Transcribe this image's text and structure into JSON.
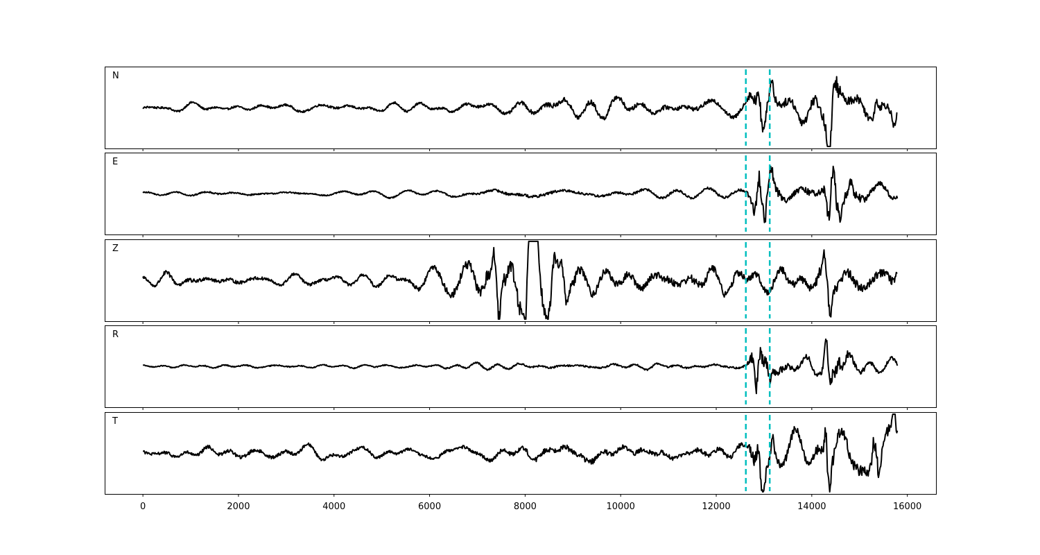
{
  "chart_data": {
    "type": "line",
    "layout": "stacked-subplots",
    "shared_x_axis": true,
    "xlim": [
      -800,
      16600
    ],
    "x_ticks": [
      0,
      2000,
      4000,
      6000,
      8000,
      10000,
      12000,
      14000,
      16000
    ],
    "x_tick_labels": [
      "0",
      "2000",
      "4000",
      "6000",
      "8000",
      "10000",
      "12000",
      "14000",
      "16000"
    ],
    "ylim": [
      -1,
      1
    ],
    "y_ticks_shown": false,
    "grid": false,
    "line_color": "#000000",
    "marker_color": "#00bfbf",
    "marker_style": "dashed",
    "vertical_markers_x": [
      12620,
      13120
    ],
    "trace_x_range": [
      0,
      15800
    ],
    "panels": [
      {
        "label": "N",
        "envelope": [
          [
            0,
            0.08
          ],
          [
            2000,
            0.08
          ],
          [
            4000,
            0.09
          ],
          [
            6000,
            0.09
          ],
          [
            7800,
            0.14
          ],
          [
            9000,
            0.22
          ],
          [
            10500,
            0.18
          ],
          [
            12000,
            0.17
          ],
          [
            12620,
            0.18
          ],
          [
            12850,
            0.72
          ],
          [
            12950,
            0.55
          ],
          [
            13150,
            0.35
          ],
          [
            13600,
            0.33
          ],
          [
            14000,
            0.4
          ],
          [
            14300,
            0.5
          ],
          [
            14450,
            0.88
          ],
          [
            14700,
            0.38
          ],
          [
            15200,
            0.32
          ],
          [
            15800,
            0.3
          ]
        ],
        "spikes": [
          [
            12880,
            0.78
          ],
          [
            13000,
            -0.42
          ],
          [
            13160,
            0.52
          ],
          [
            14360,
            -0.92
          ],
          [
            14480,
            0.55
          ],
          [
            15350,
            0.35
          ],
          [
            15720,
            -0.35
          ]
        ]
      },
      {
        "label": "E",
        "envelope": [
          [
            0,
            0.05
          ],
          [
            2000,
            0.06
          ],
          [
            4000,
            0.05
          ],
          [
            6000,
            0.06
          ],
          [
            7000,
            0.08
          ],
          [
            8000,
            0.12
          ],
          [
            9500,
            0.1
          ],
          [
            11000,
            0.1
          ],
          [
            12000,
            0.1
          ],
          [
            12620,
            0.1
          ],
          [
            12880,
            0.72
          ],
          [
            13000,
            0.6
          ],
          [
            13150,
            0.45
          ],
          [
            13600,
            0.25
          ],
          [
            14200,
            0.3
          ],
          [
            14450,
            0.8
          ],
          [
            14800,
            0.45
          ],
          [
            15200,
            0.25
          ],
          [
            15800,
            0.2
          ]
        ],
        "spikes": [
          [
            12890,
            0.9
          ],
          [
            13020,
            -0.72
          ],
          [
            13150,
            0.42
          ],
          [
            14350,
            -0.68
          ],
          [
            14450,
            0.75
          ],
          [
            14600,
            -0.4
          ],
          [
            14820,
            0.35
          ]
        ]
      },
      {
        "label": "Z",
        "envelope": [
          [
            0,
            0.1
          ],
          [
            500,
            0.18
          ],
          [
            1500,
            0.15
          ],
          [
            3000,
            0.12
          ],
          [
            4500,
            0.12
          ],
          [
            5500,
            0.15
          ],
          [
            6300,
            0.25
          ],
          [
            7000,
            0.5
          ],
          [
            7500,
            0.72
          ],
          [
            8100,
            0.78
          ],
          [
            8700,
            0.5
          ],
          [
            9500,
            0.3
          ],
          [
            10500,
            0.3
          ],
          [
            11500,
            0.32
          ],
          [
            12600,
            0.3
          ],
          [
            13100,
            0.3
          ],
          [
            13600,
            0.3
          ],
          [
            14300,
            0.5
          ],
          [
            14600,
            0.4
          ],
          [
            15800,
            0.35
          ]
        ],
        "spikes": [
          [
            7350,
            0.65
          ],
          [
            7450,
            -0.72
          ],
          [
            8070,
            0.72
          ],
          [
            8020,
            -0.82
          ],
          [
            8250,
            0.62
          ],
          [
            8600,
            0.62
          ],
          [
            8860,
            -0.62
          ],
          [
            14380,
            -0.85
          ],
          [
            14260,
            0.42
          ],
          [
            15780,
            0.3
          ]
        ]
      },
      {
        "label": "R",
        "envelope": [
          [
            0,
            0.03
          ],
          [
            2000,
            0.05
          ],
          [
            4000,
            0.04
          ],
          [
            6000,
            0.05
          ],
          [
            7000,
            0.07
          ],
          [
            8000,
            0.07
          ],
          [
            10000,
            0.07
          ],
          [
            12000,
            0.07
          ],
          [
            12620,
            0.08
          ],
          [
            12850,
            0.82
          ],
          [
            13000,
            0.55
          ],
          [
            13150,
            0.4
          ],
          [
            13600,
            0.2
          ],
          [
            14200,
            0.25
          ],
          [
            14450,
            0.65
          ],
          [
            14600,
            0.4
          ],
          [
            15000,
            0.2
          ],
          [
            15800,
            0.15
          ]
        ],
        "spikes": [
          [
            12900,
            0.72
          ],
          [
            12860,
            -0.9
          ],
          [
            13120,
            -0.4
          ],
          [
            14300,
            0.6
          ],
          [
            14380,
            -0.72
          ],
          [
            14560,
            0.42
          ]
        ]
      },
      {
        "label": "T",
        "envelope": [
          [
            0,
            0.12
          ],
          [
            2000,
            0.15
          ],
          [
            4000,
            0.13
          ],
          [
            6000,
            0.12
          ],
          [
            7000,
            0.14
          ],
          [
            8000,
            0.2
          ],
          [
            9200,
            0.25
          ],
          [
            10500,
            0.2
          ],
          [
            12000,
            0.18
          ],
          [
            12620,
            0.2
          ],
          [
            12850,
            0.65
          ],
          [
            13000,
            0.5
          ],
          [
            13200,
            0.4
          ],
          [
            13800,
            0.3
          ],
          [
            14200,
            0.45
          ],
          [
            14400,
            0.92
          ],
          [
            14600,
            0.45
          ],
          [
            15300,
            0.6
          ],
          [
            15800,
            0.45
          ]
        ],
        "spikes": [
          [
            12870,
            0.65
          ],
          [
            12980,
            -0.72
          ],
          [
            13180,
            0.5
          ],
          [
            14300,
            0.95
          ],
          [
            14350,
            -0.55
          ],
          [
            15300,
            0.68
          ],
          [
            15420,
            -0.6
          ],
          [
            15720,
            0.5
          ]
        ]
      }
    ]
  }
}
